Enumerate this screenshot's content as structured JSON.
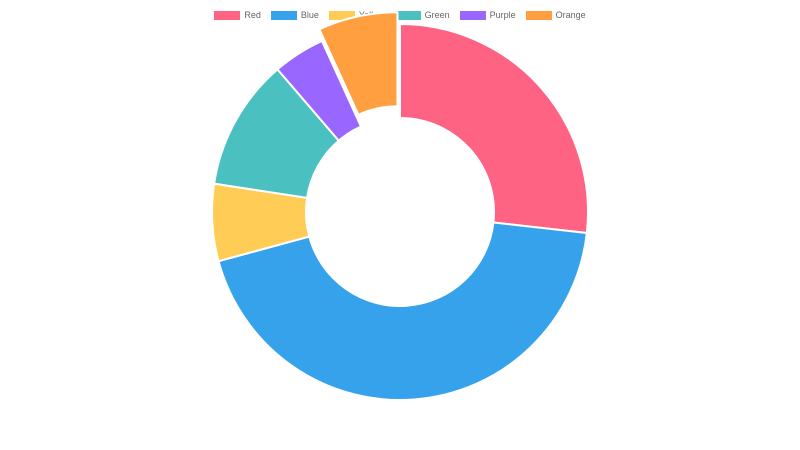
{
  "chart_data": {
    "type": "pie",
    "variant": "doughnut",
    "categories": [
      "Red",
      "Blue",
      "Yellow",
      "Green",
      "Purple",
      "Orange"
    ],
    "values": [
      27.5,
      45.2,
      6.8,
      11.6,
      4.6,
      7.0
    ],
    "offset_slice": "Orange",
    "legend_position": "top",
    "colors": [
      "#ff6384",
      "#36a2eb",
      "#ffcd56",
      "#4bc0c0",
      "#9966ff",
      "#ff9f40"
    ],
    "title": ""
  }
}
